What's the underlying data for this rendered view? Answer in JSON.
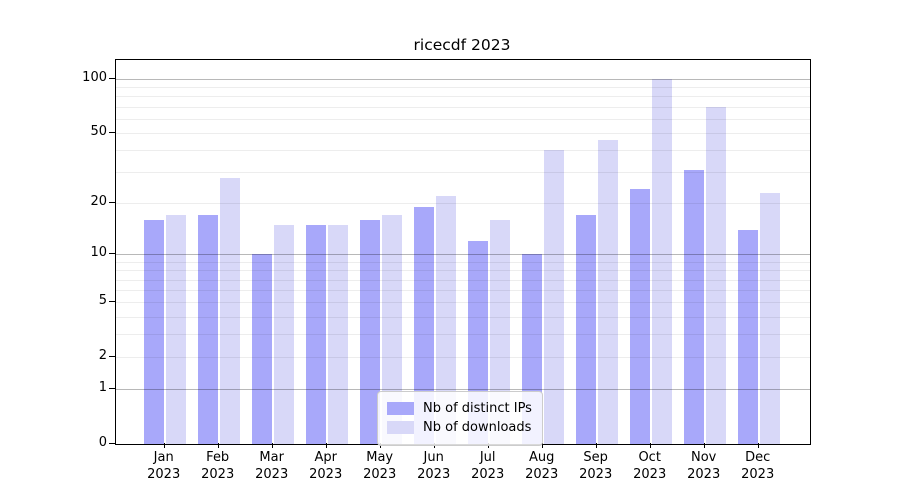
{
  "chart_data": {
    "type": "bar",
    "title": "ricecdf 2023",
    "categories": [
      "Jan",
      "Feb",
      "Mar",
      "Apr",
      "May",
      "Jun",
      "Jul",
      "Aug",
      "Sep",
      "Oct",
      "Nov",
      "Dec"
    ],
    "year_label": "2023",
    "series": [
      {
        "name": "Nb of distinct IPs",
        "color": "#a8a8fa",
        "values": [
          16,
          17,
          10,
          15,
          16,
          19,
          12,
          10,
          17,
          24,
          31,
          14
        ]
      },
      {
        "name": "Nb of downloads",
        "color": "#d8d8f8",
        "values": [
          17,
          28,
          15,
          15,
          17,
          22,
          16,
          40,
          46,
          100,
          70,
          23
        ]
      }
    ],
    "xlabel": "",
    "ylabel": "",
    "scale": "log1p",
    "ylim": [
      0,
      127
    ],
    "y_ticks": [
      100,
      50,
      20,
      10,
      5,
      2,
      1,
      0
    ],
    "grid": {
      "major": [
        1,
        10,
        100
      ],
      "minor": [
        2,
        3,
        4,
        5,
        6,
        7,
        8,
        9,
        20,
        30,
        40,
        50,
        60,
        70,
        80,
        90
      ]
    },
    "legend_position": "bottom-center"
  }
}
